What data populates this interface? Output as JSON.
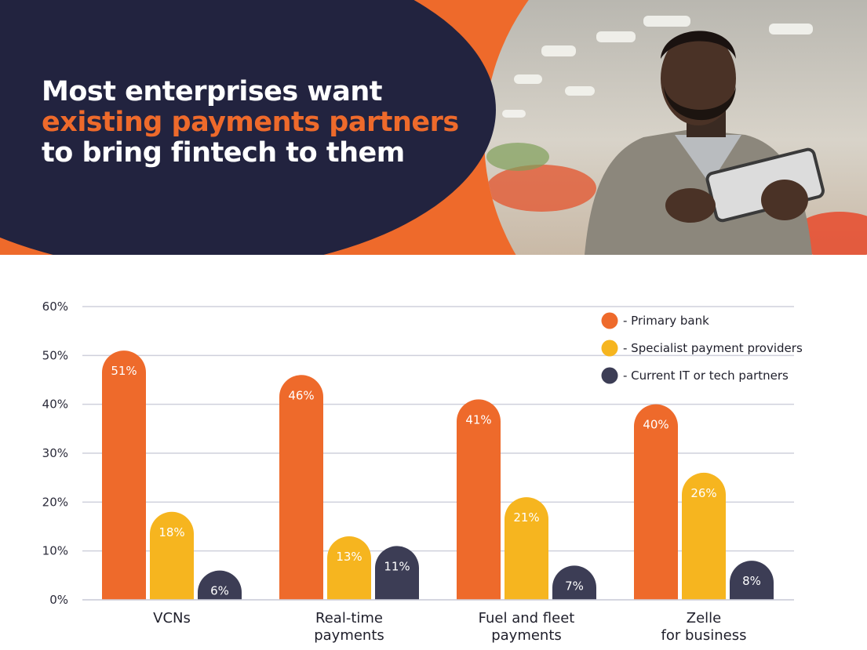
{
  "header": {
    "title_line1": "Most enterprises want",
    "title_line2": "existing payments partners",
    "title_line3": "to bring fintech to them"
  },
  "colors": {
    "navy": "#22233f",
    "orange": "#ee6a2b",
    "primary_bank": "#ee6a2b",
    "specialist": "#f6b51f",
    "tech_partners": "#3c3d55",
    "grid": "#cfd0dc"
  },
  "chart_data": {
    "type": "bar",
    "categories": [
      [
        "VCNs"
      ],
      [
        "Real-time",
        "payments"
      ],
      [
        "Fuel and fleet",
        "payments"
      ],
      [
        "Zelle",
        "for business"
      ]
    ],
    "series": [
      {
        "name": "- Primary bank",
        "values": [
          51,
          46,
          41,
          40
        ],
        "color": "#ee6a2b"
      },
      {
        "name": "- Specialist payment providers",
        "values": [
          18,
          13,
          21,
          26
        ],
        "color": "#f6b51f"
      },
      {
        "name": "- Current IT or tech partners",
        "values": [
          6,
          11,
          7,
          8
        ],
        "color": "#3c3d55"
      }
    ],
    "ylim": [
      0,
      60
    ],
    "yticks": [
      0,
      10,
      20,
      30,
      40,
      50,
      60
    ],
    "ytick_labels": [
      "0%",
      "10%",
      "20%",
      "30%",
      "40%",
      "50%",
      "60%"
    ],
    "value_suffix": "%",
    "legend_position": "top-right",
    "grid": true
  }
}
